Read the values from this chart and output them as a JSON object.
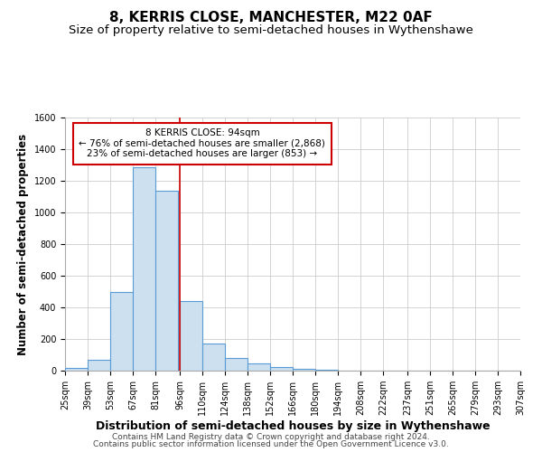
{
  "title": "8, KERRIS CLOSE, MANCHESTER, M22 0AF",
  "subtitle": "Size of property relative to semi-detached houses in Wythenshawe",
  "xlabel": "Distribution of semi-detached houses by size in Wythenshawe",
  "ylabel": "Number of semi-detached properties",
  "footer_line1": "Contains HM Land Registry data © Crown copyright and database right 2024.",
  "footer_line2": "Contains public sector information licensed under the Open Government Licence v3.0.",
  "bar_left_edges": [
    25,
    39,
    53,
    67,
    81,
    96,
    110,
    124,
    138,
    152,
    166,
    180,
    194,
    208,
    222,
    237,
    251,
    265,
    279,
    293
  ],
  "bar_heights": [
    15,
    70,
    500,
    1285,
    1135,
    440,
    170,
    80,
    45,
    25,
    10,
    5,
    2,
    1,
    0,
    0,
    0,
    0,
    0,
    0
  ],
  "bin_width": 14,
  "x_tick_labels": [
    "25sqm",
    "39sqm",
    "53sqm",
    "67sqm",
    "81sqm",
    "96sqm",
    "110sqm",
    "124sqm",
    "138sqm",
    "152sqm",
    "166sqm",
    "180sqm",
    "194sqm",
    "208sqm",
    "222sqm",
    "237sqm",
    "251sqm",
    "265sqm",
    "279sqm",
    "293sqm",
    "307sqm"
  ],
  "x_tick_positions": [
    25,
    39,
    53,
    67,
    81,
    96,
    110,
    124,
    138,
    152,
    166,
    180,
    194,
    208,
    222,
    237,
    251,
    265,
    279,
    293,
    307
  ],
  "ylim": [
    0,
    1600
  ],
  "yticks": [
    0,
    200,
    400,
    600,
    800,
    1000,
    1200,
    1400,
    1600
  ],
  "bar_color": "#cce0f0",
  "bar_edge_color": "#5b9bd5",
  "vline_x": 96,
  "vline_color": "#cc0000",
  "annotation_title": "8 KERRIS CLOSE: 94sqm",
  "annotation_line1": "← 76% of semi-detached houses are smaller (2,868)",
  "annotation_line2": "23% of semi-detached houses are larger (853) →",
  "annotation_box_color": "#ffffff",
  "annotation_box_edge": "#cc0000",
  "title_fontsize": 11,
  "subtitle_fontsize": 9.5,
  "xlabel_fontsize": 9,
  "ylabel_fontsize": 8.5,
  "tick_fontsize": 7,
  "annot_fontsize": 7.5,
  "footer_fontsize": 6.5,
  "background_color": "#ffffff",
  "grid_color": "#cccccc"
}
